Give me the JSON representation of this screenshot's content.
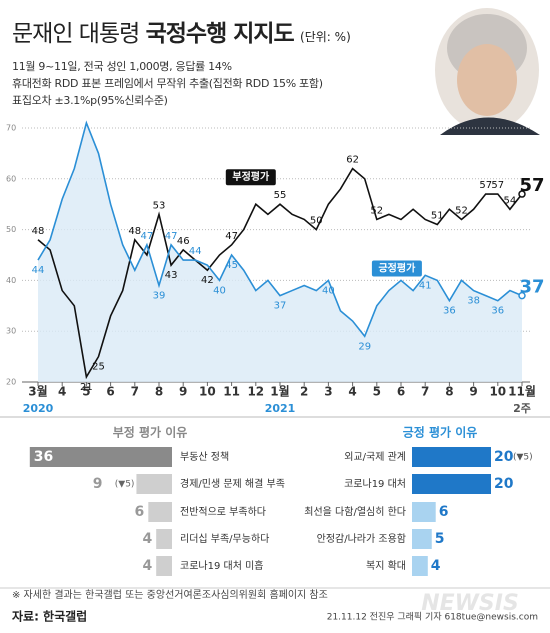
{
  "header": {
    "title": "문재인 대통령",
    "title_bold": "국정수행 지지도",
    "unit": "(단위: %)",
    "notes": [
      "11월 9~11일, 전국 성인 1,000명, 응답률 14%",
      "휴대전화 RDD 표본 프레임에서 무작위 추출(집전화 RDD 15% 포함)",
      "표집오차 ±3.1%p(95%신뢰수준)"
    ]
  },
  "chart_data": [
    {
      "type": "line",
      "categories": [
        "3월",
        null,
        "4",
        null,
        "5",
        null,
        "6",
        null,
        "7",
        null,
        "8",
        null,
        "9",
        null,
        "10",
        null,
        "11",
        null,
        "12",
        null,
        "1월",
        null,
        "2",
        null,
        "3",
        null,
        "4",
        null,
        "5",
        null,
        "6",
        null,
        "7",
        null,
        "8",
        null,
        "9",
        null,
        "10",
        null,
        "11월"
      ],
      "x_sublabels": [
        "2020",
        null,
        null,
        null,
        null,
        null,
        null,
        null,
        null,
        null,
        null,
        null,
        null,
        null,
        null,
        null,
        null,
        null,
        null,
        null,
        "2021",
        null,
        null,
        null,
        null,
        null,
        null,
        null,
        null,
        null,
        null,
        null,
        null,
        null,
        null,
        null,
        null,
        null,
        null,
        null,
        "2주"
      ],
      "ylim": [
        20,
        70
      ],
      "yticks": [
        20,
        30,
        40,
        50,
        60,
        70
      ],
      "grid": true,
      "series": [
        {
          "name": "부정평가",
          "color": "#111111",
          "values": [
            48,
            46,
            38,
            35,
            21,
            25,
            33,
            38,
            48,
            45,
            53,
            43,
            46,
            44,
            42,
            45,
            47,
            50,
            55,
            53,
            55,
            53,
            52,
            50,
            55,
            58,
            62,
            60,
            52,
            53,
            52,
            54,
            52,
            51,
            54,
            52,
            54,
            57,
            57,
            54,
            57
          ],
          "value_labels": [
            "48",
            null,
            null,
            null,
            "21",
            "25",
            null,
            null,
            "48",
            null,
            "53",
            "43",
            "46",
            null,
            "42",
            null,
            "47",
            null,
            null,
            null,
            "55",
            null,
            null,
            "50",
            null,
            null,
            "62",
            null,
            "52",
            null,
            null,
            null,
            null,
            "51",
            null,
            "52",
            null,
            "57",
            "57",
            "54",
            "57"
          ]
        },
        {
          "name": "긍정평가",
          "color": "#2b8fd6",
          "values": [
            44,
            48,
            56,
            62,
            71,
            65,
            55,
            47,
            42,
            47,
            39,
            47,
            44,
            44,
            43,
            40,
            45,
            42,
            38,
            40,
            37,
            38,
            39,
            38,
            40,
            34,
            32,
            29,
            35,
            38,
            40,
            38,
            41,
            40,
            36,
            40,
            38,
            37,
            36,
            38,
            37
          ],
          "value_labels": [
            "44",
            null,
            null,
            null,
            null,
            null,
            null,
            null,
            null,
            "47",
            "39",
            "47",
            null,
            "44",
            null,
            "40",
            "45",
            null,
            null,
            null,
            "37",
            null,
            null,
            null,
            "40",
            null,
            null,
            "29",
            null,
            null,
            null,
            null,
            "41",
            null,
            "36",
            null,
            "38",
            null,
            "36",
            null,
            "37"
          ]
        }
      ]
    },
    {
      "type": "bar",
      "title": "부정 평가 이유",
      "side": "left",
      "categories": [
        "부동산 정책",
        "경제/민생 문제 해결 부족",
        "전반적으로 부족하다",
        "리더십 부족/무능하다",
        "코로나19 대처 미흡"
      ],
      "values": [
        36,
        9,
        6,
        4,
        4
      ],
      "changes": [
        null,
        "(▼5)",
        null,
        null,
        null
      ],
      "colors": [
        "#8a8a8a",
        "#cfcfcf",
        "#cfcfcf",
        "#cfcfcf",
        "#cfcfcf"
      ]
    },
    {
      "type": "bar",
      "title": "긍정 평가 이유",
      "side": "right",
      "categories": [
        "외교/국제 관계",
        "코로나19 대처",
        "최선을 다함/열심히 한다",
        "안정감/나라가 조용함",
        "복지 확대"
      ],
      "values": [
        20,
        20,
        6,
        5,
        4
      ],
      "changes": [
        "(▼5)",
        null,
        null,
        null,
        null
      ],
      "colors": [
        "#1f78c8",
        "#1f78c8",
        "#a9d3f0",
        "#a9d3f0",
        "#a9d3f0"
      ]
    }
  ],
  "footer": {
    "note": "※ 자세한 결과는 한국갤럽 또는 중앙선거여론조사심의위원회 홈페이지 참조",
    "source": "자료: 한국갤럽",
    "credit": "21.11.12 전진우 그래픽 기자 618tue@newsis.com",
    "watermark": "NEWSIS"
  }
}
